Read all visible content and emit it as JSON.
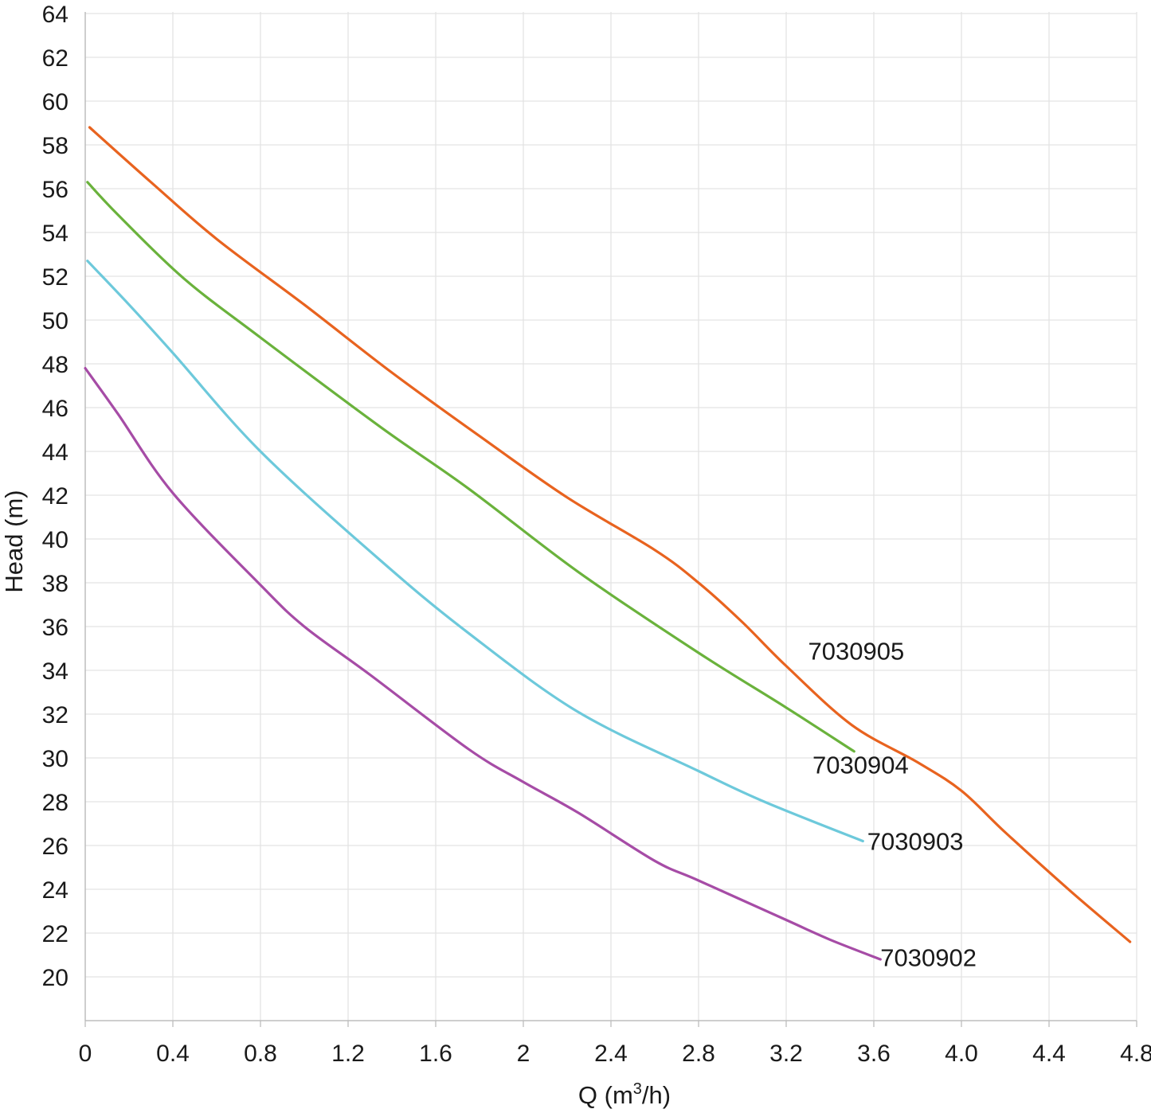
{
  "chart_data": {
    "type": "line",
    "title": "",
    "xlabel": "Q (m3/h)",
    "xlabel_parts": {
      "base": "Q (m",
      "sup": "3",
      "tail": "/h)"
    },
    "ylabel": "Head (m)",
    "xlim": [
      0,
      4.8
    ],
    "ylim": [
      18,
      64
    ],
    "grid": true,
    "legend": "inline labels at line ends",
    "x_ticks": [
      {
        "value": 0,
        "label": "0"
      },
      {
        "value": 0.4,
        "label": "0.4"
      },
      {
        "value": 0.8,
        "label": "0.8"
      },
      {
        "value": 1.2,
        "label": "1.2"
      },
      {
        "value": 1.6,
        "label": "1.6"
      },
      {
        "value": 2.0,
        "label": "2"
      },
      {
        "value": 2.4,
        "label": "2.4"
      },
      {
        "value": 2.8,
        "label": "2.8"
      },
      {
        "value": 3.2,
        "label": "3.2"
      },
      {
        "value": 3.6,
        "label": "3.6"
      },
      {
        "value": 4.0,
        "label": "4.0"
      },
      {
        "value": 4.4,
        "label": "4.4"
      },
      {
        "value": 4.8,
        "label": "4.8"
      }
    ],
    "y_ticks": [
      20,
      22,
      24,
      26,
      28,
      30,
      32,
      34,
      36,
      38,
      40,
      42,
      44,
      46,
      48,
      50,
      52,
      54,
      56,
      58,
      60,
      62,
      64
    ],
    "series": [
      {
        "name": "7030905",
        "color": "#E8631F",
        "points": [
          [
            0.02,
            58.8
          ],
          [
            0.3,
            56.3
          ],
          [
            0.6,
            53.7
          ],
          [
            1.0,
            50.7
          ],
          [
            1.4,
            47.6
          ],
          [
            1.8,
            44.7
          ],
          [
            2.2,
            41.9
          ],
          [
            2.6,
            39.5
          ],
          [
            2.8,
            38.0
          ],
          [
            3.0,
            36.2
          ],
          [
            3.2,
            34.2
          ],
          [
            3.5,
            31.5
          ],
          [
            3.8,
            29.8
          ],
          [
            4.0,
            28.5
          ],
          [
            4.2,
            26.6
          ],
          [
            4.5,
            23.9
          ],
          [
            4.77,
            21.6
          ]
        ]
      },
      {
        "name": "7030904",
        "color": "#6AB23C",
        "points": [
          [
            0.01,
            56.3
          ],
          [
            0.15,
            54.8
          ],
          [
            0.45,
            51.9
          ],
          [
            0.8,
            49.2
          ],
          [
            1.35,
            45.1
          ],
          [
            1.75,
            42.3
          ],
          [
            2.25,
            38.5
          ],
          [
            2.8,
            34.8
          ],
          [
            3.2,
            32.3
          ],
          [
            3.51,
            30.3
          ]
        ]
      },
      {
        "name": "7030903",
        "color": "#6DC9DB",
        "points": [
          [
            0.01,
            52.7
          ],
          [
            0.2,
            50.7
          ],
          [
            0.4,
            48.5
          ],
          [
            0.8,
            44.0
          ],
          [
            1.35,
            39.0
          ],
          [
            1.75,
            35.7
          ],
          [
            2.25,
            32.1
          ],
          [
            2.8,
            29.4
          ],
          [
            3.1,
            28.0
          ],
          [
            3.55,
            26.2
          ]
        ]
      },
      {
        "name": "7030902",
        "color": "#A64CA6",
        "points": [
          [
            0.0,
            47.8
          ],
          [
            0.15,
            45.7
          ],
          [
            0.4,
            42.1
          ],
          [
            0.8,
            37.9
          ],
          [
            1.0,
            36.0
          ],
          [
            1.3,
            33.8
          ],
          [
            1.75,
            30.4
          ],
          [
            2.0,
            28.9
          ],
          [
            2.25,
            27.5
          ],
          [
            2.6,
            25.3
          ],
          [
            2.8,
            24.4
          ],
          [
            3.2,
            22.6
          ],
          [
            3.4,
            21.7
          ],
          [
            3.63,
            20.8
          ]
        ]
      }
    ],
    "annotations": [
      {
        "series": "7030905",
        "text": "7030905",
        "x": 3.3,
        "y": 34.9
      },
      {
        "series": "7030904",
        "text": "7030904",
        "x": 3.32,
        "y": 29.7
      },
      {
        "series": "7030903",
        "text": "7030903",
        "x": 3.57,
        "y": 26.2
      },
      {
        "series": "7030902",
        "text": "7030902",
        "x": 3.63,
        "y": 20.9
      }
    ]
  }
}
